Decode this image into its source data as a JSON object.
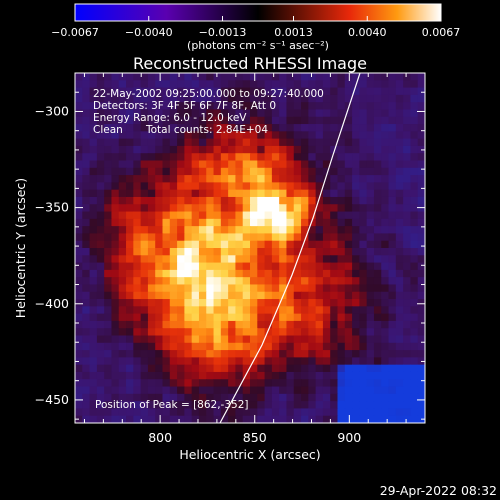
{
  "chart_data": {
    "type": "heatmap",
    "title": "Reconstructed RHESSI Image",
    "xlabel": "Heliocentric X (arcsec)",
    "ylabel": "Heliocentric Y (arcsec)",
    "xlim": [
      755,
      940
    ],
    "ylim": [
      -462,
      -280
    ],
    "x_ticks": [
      800,
      850,
      900
    ],
    "y_ticks": [
      -300,
      -350,
      -400,
      -450
    ],
    "colorbar": {
      "ticks": [
        "-0.0067",
        "-0.0040",
        "-0.0013",
        "0.0013",
        "0.0040",
        "0.0067"
      ],
      "range": [
        -0.0067,
        0.0067
      ],
      "unit_label": "(photons cm⁻² s⁻¹ asec⁻²)"
    },
    "annotations": {
      "line1": "22-May-2002 09:25:00.000 to 09:27:40.000",
      "line2": "Detectors: 3F 4F 5F 6F 7F 8F, Att 0",
      "line3": "Energy Range: 6.0 - 12.0 keV",
      "line4_left": "Clean",
      "line4_right": "Total counts: 2.84E+04",
      "peak": "Position of Peak = [862,-352]"
    },
    "peak": {
      "x": 862,
      "y": -352
    },
    "timestamp": "29-Apr-2022 08:32"
  }
}
